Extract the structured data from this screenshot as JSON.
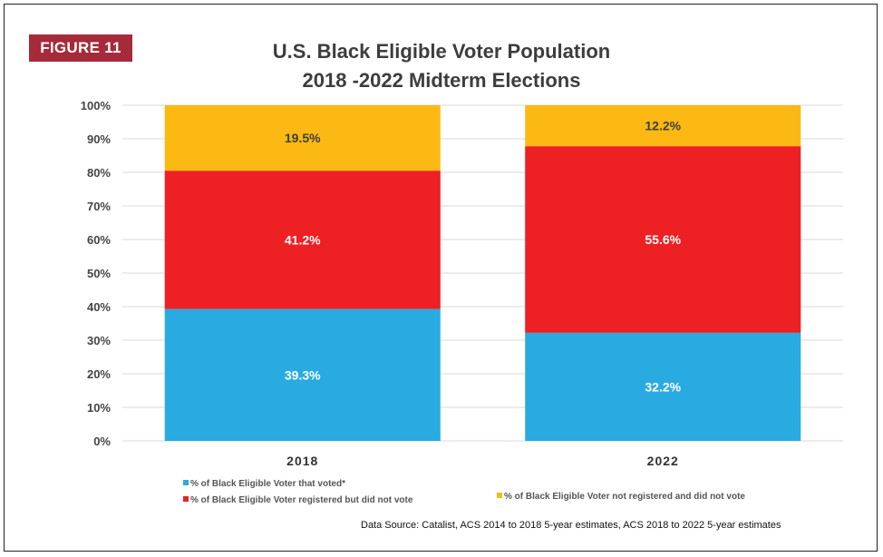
{
  "figure_label": "FIGURE 11",
  "chart_data": {
    "type": "bar",
    "stacked": true,
    "title": "U.S. Black Eligible Voter Population",
    "subtitle": "2018 -2022 Midterm Elections",
    "categories": [
      "2018",
      "2022"
    ],
    "series": [
      {
        "name": "% of Black Eligible Voter that voted*",
        "color": "#29abe2",
        "values": [
          39.3,
          32.2
        ],
        "labels": [
          "39.3%",
          "32.2%"
        ]
      },
      {
        "name": "% of Black Eligible Voter registered but did not vote",
        "color": "#ed2024",
        "values": [
          41.2,
          55.6
        ],
        "labels": [
          "41.2%",
          "55.6%"
        ]
      },
      {
        "name": "% of Black Eligible Voter not registered and did not vote",
        "color": "#fdb913",
        "values": [
          19.5,
          12.2
        ],
        "labels": [
          "19.5%",
          "12.2%"
        ]
      }
    ],
    "label_colors": [
      "#ffffff",
      "#ffffff",
      "#3d3d3d"
    ],
    "ylim": [
      0,
      100
    ],
    "yticks": [
      "0%",
      "10%",
      "20%",
      "30%",
      "40%",
      "50%",
      "60%",
      "70%",
      "80%",
      "90%",
      "100%"
    ],
    "grid": true,
    "legend_position": "bottom-left",
    "source": "Data Source: Catalist, ACS 2014 to 2018 5-year estimates,  ACS 2018 to 2022 5-year estimates"
  }
}
